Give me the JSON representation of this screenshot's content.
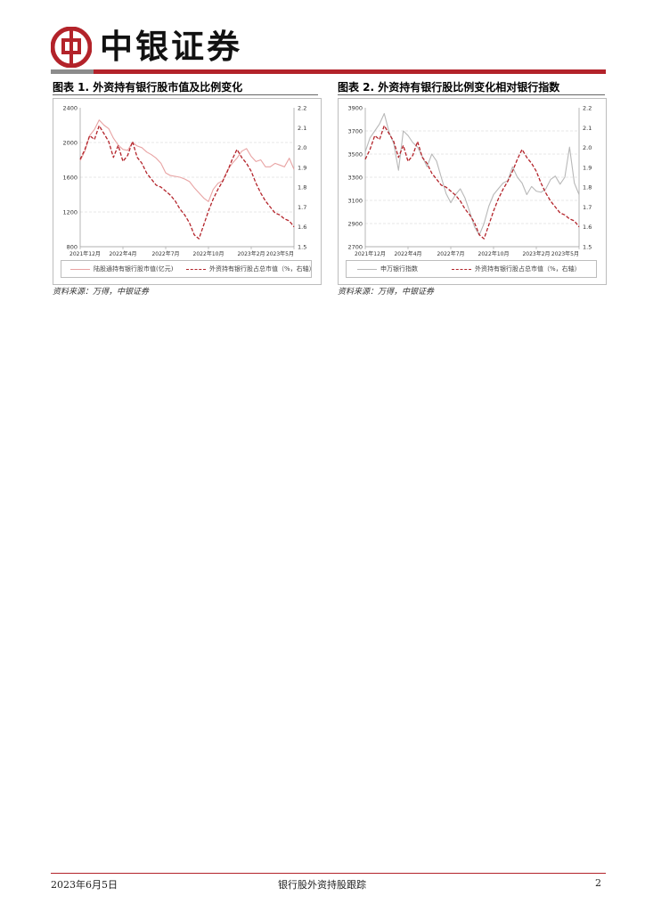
{
  "header": {
    "brand": "中银证券",
    "colors": {
      "brand_red": "#b3232a",
      "grey_bar": "#8c8c8c"
    }
  },
  "figures": [
    {
      "title": "图表 1. 外资持有银行股市值及比例变化",
      "source": "资料来源：万得，中银证券",
      "legend": [
        "陆股通持有银行股市值(亿元)",
        "外资持有银行股占总市值（%，右轴）"
      ]
    },
    {
      "title": "图表 2. 外资持有银行股比例变化相对银行指数",
      "source": "资料来源：万得，中银证券",
      "legend": [
        "申万银行指数",
        "外资持有银行股占总市值（%，右轴）"
      ]
    }
  ],
  "chart_data": [
    {
      "type": "line",
      "title": "图表 1. 外资持有银行股市值及比例变化",
      "x_ticks": [
        "2021年12月",
        "2022年4月",
        "2022年7月",
        "2022年10月",
        "2023年2月",
        "2023年5月"
      ],
      "y_left": {
        "ticks": [
          "2400",
          "2000",
          "1600",
          "1200",
          "800"
        ],
        "range": [
          800,
          2400
        ]
      },
      "y_right": {
        "ticks": [
          "2.2",
          "2.1",
          "2.0",
          "1.9",
          "1.8",
          "1.7",
          "1.6",
          "1.5"
        ],
        "range": [
          1.5,
          2.2
        ]
      },
      "series": [
        {
          "name": "陆股通持有银行股市值(亿元)",
          "axis": "left",
          "color": "#e8a3a3",
          "style": "solid",
          "values": [
            1790,
            1900,
            2080,
            2150,
            2260,
            2200,
            2160,
            2050,
            1970,
            1920,
            1910,
            2000,
            1960,
            1940,
            1890,
            1860,
            1820,
            1760,
            1650,
            1620,
            1610,
            1600,
            1580,
            1550,
            1480,
            1420,
            1360,
            1320,
            1460,
            1530,
            1560,
            1680,
            1760,
            1820,
            1900,
            1930,
            1840,
            1780,
            1800,
            1720,
            1720,
            1760,
            1740,
            1720,
            1820,
            1690
          ]
        },
        {
          "name": "外资持有银行股占总市值（%，右轴）",
          "axis": "right",
          "color": "#b3232a",
          "style": "dashed",
          "values": [
            1.94,
            1.99,
            2.06,
            2.04,
            2.11,
            2.07,
            2.03,
            1.95,
            2.01,
            1.93,
            1.96,
            2.03,
            1.95,
            1.92,
            1.87,
            1.84,
            1.81,
            1.8,
            1.78,
            1.76,
            1.73,
            1.69,
            1.66,
            1.62,
            1.56,
            1.54,
            1.61,
            1.68,
            1.74,
            1.79,
            1.83,
            1.88,
            1.94,
            1.99,
            1.95,
            1.92,
            1.88,
            1.82,
            1.77,
            1.73,
            1.7,
            1.67,
            1.66,
            1.64,
            1.63,
            1.6
          ]
        }
      ]
    },
    {
      "type": "line",
      "title": "图表 2. 外资持有银行股比例变化相对银行指数",
      "x_ticks": [
        "2021年12月",
        "2022年4月",
        "2022年7月",
        "2022年10月",
        "2023年2月",
        "2023年5月"
      ],
      "y_left": {
        "ticks": [
          "3900",
          "3700",
          "3500",
          "3300",
          "3100",
          "2900",
          "2700"
        ],
        "range": [
          2700,
          3900
        ]
      },
      "y_right": {
        "ticks": [
          "2.2",
          "2.1",
          "2.0",
          "1.9",
          "1.8",
          "1.7",
          "1.6",
          "1.5"
        ],
        "range": [
          1.5,
          2.2
        ]
      },
      "series": [
        {
          "name": "申万银行指数",
          "axis": "left",
          "color": "#b8b8b8",
          "style": "solid",
          "values": [
            3520,
            3640,
            3700,
            3760,
            3850,
            3690,
            3590,
            3360,
            3700,
            3660,
            3600,
            3560,
            3480,
            3390,
            3500,
            3440,
            3300,
            3160,
            3080,
            3150,
            3200,
            3120,
            3000,
            2870,
            2800,
            2900,
            3050,
            3150,
            3200,
            3250,
            3270,
            3390,
            3300,
            3250,
            3150,
            3220,
            3180,
            3170,
            3200,
            3280,
            3310,
            3240,
            3300,
            3560,
            3250,
            3150
          ]
        },
        {
          "name": "外资持有银行股占总市值（%，右轴）",
          "axis": "right",
          "color": "#b3232a",
          "style": "dashed",
          "values": [
            1.94,
            1.99,
            2.06,
            2.04,
            2.11,
            2.07,
            2.03,
            1.95,
            2.01,
            1.93,
            1.96,
            2.03,
            1.95,
            1.92,
            1.87,
            1.84,
            1.81,
            1.8,
            1.78,
            1.76,
            1.73,
            1.69,
            1.66,
            1.62,
            1.56,
            1.54,
            1.61,
            1.68,
            1.74,
            1.79,
            1.83,
            1.88,
            1.94,
            1.99,
            1.95,
            1.92,
            1.88,
            1.82,
            1.77,
            1.73,
            1.7,
            1.67,
            1.66,
            1.64,
            1.63,
            1.6
          ]
        }
      ]
    }
  ],
  "footer": {
    "date": "2023年6月5日",
    "center": "银行股外资持股跟踪",
    "page": "2"
  }
}
